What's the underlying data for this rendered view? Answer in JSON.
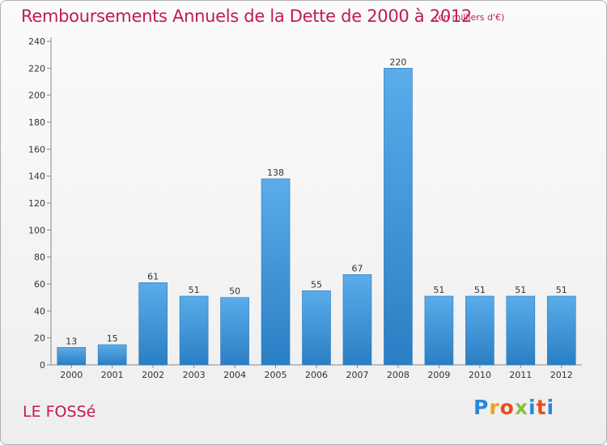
{
  "header": {
    "title": "Remboursements Annuels de la Dette de 2000 à 2012",
    "unit": "(en milliers d'€)"
  },
  "footer": {
    "commune": "LE FOSSé",
    "logo": "Proxiti"
  },
  "colors": {
    "title": "#c2185b",
    "bar_light": "#5aacea",
    "bar_dark": "#2a7fc4",
    "grid": "#cccccc"
  },
  "chart_data": {
    "type": "bar",
    "title": "Remboursements Annuels de la Dette de 2000 à 2012",
    "subtitle": "(en milliers d'€)",
    "xlabel": "",
    "ylabel": "",
    "categories": [
      "2000",
      "2001",
      "2002",
      "2003",
      "2004",
      "2005",
      "2006",
      "2007",
      "2008",
      "2009",
      "2010",
      "2011",
      "2012"
    ],
    "values": [
      13,
      15,
      61,
      51,
      50,
      138,
      55,
      67,
      220,
      51,
      51,
      51,
      51
    ],
    "ylim": [
      0,
      240
    ],
    "yticks": [
      0,
      20,
      40,
      60,
      80,
      100,
      120,
      140,
      160,
      180,
      200,
      220,
      240
    ],
    "grid": false,
    "data_labels": true
  }
}
